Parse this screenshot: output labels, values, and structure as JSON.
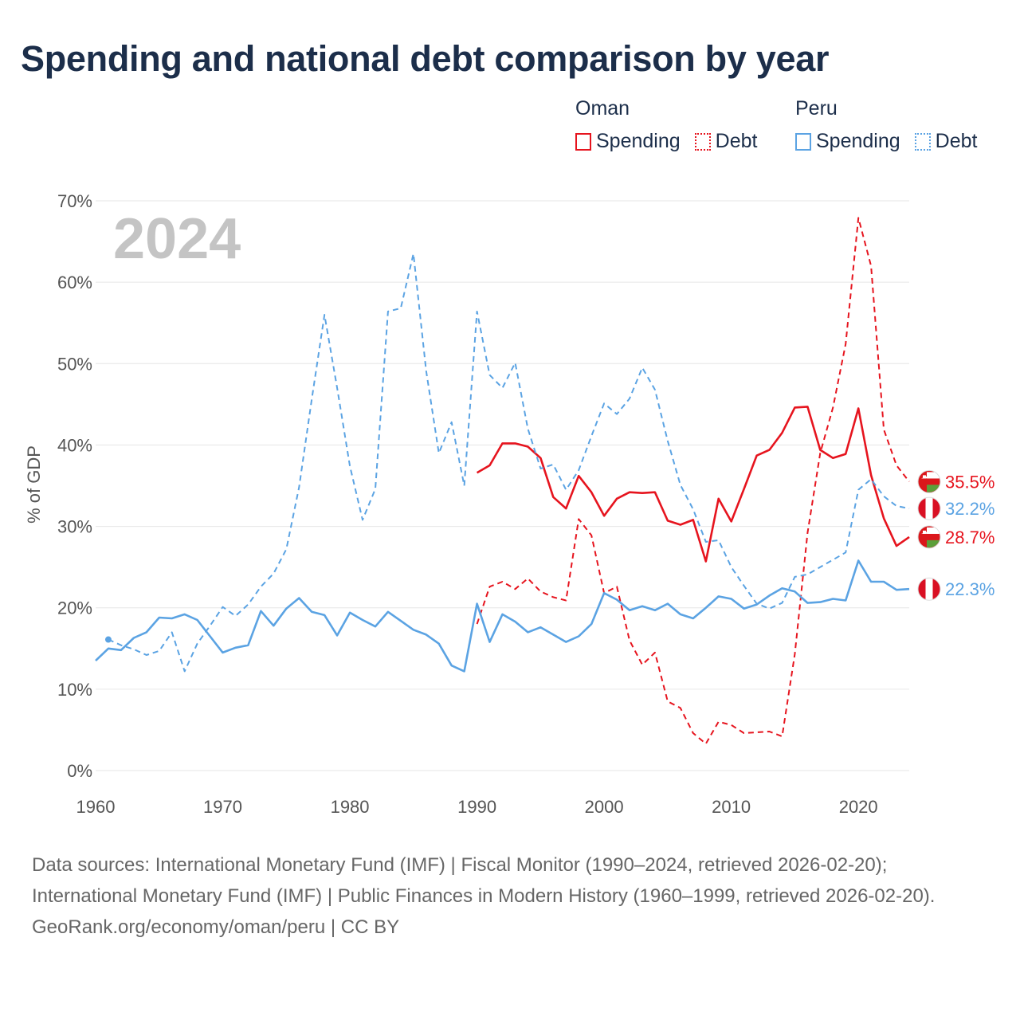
{
  "title": "Spending and national debt comparison by year",
  "legend": {
    "groups": [
      {
        "country": "Oman",
        "color": "#e6141e",
        "spending_label": "Spending",
        "debt_label": "Debt"
      },
      {
        "country": "Peru",
        "color": "#5ba3e3",
        "spending_label": "Spending",
        "debt_label": "Debt"
      }
    ]
  },
  "year_label": "2024",
  "end_labels": [
    {
      "text": "35.5%",
      "country": "Oman",
      "series": "Debt",
      "value": 35.5
    },
    {
      "text": "32.2%",
      "country": "Peru",
      "series": "Debt",
      "value": 32.2
    },
    {
      "text": "28.7%",
      "country": "Oman",
      "series": "Spending",
      "value": 28.7
    },
    {
      "text": "22.3%",
      "country": "Peru",
      "series": "Spending",
      "value": 22.3
    }
  ],
  "chart_data": {
    "type": "line",
    "title": "Spending and national debt comparison by year",
    "xlabel": "",
    "ylabel": "% of GDP",
    "xlim": [
      1960,
      2024
    ],
    "ylim": [
      0,
      70
    ],
    "xticks": [
      "1960",
      "1970",
      "1980",
      "1990",
      "2000",
      "2010",
      "2020"
    ],
    "yticks": [
      "0%",
      "10%",
      "20%",
      "30%",
      "40%",
      "50%",
      "60%",
      "70%"
    ],
    "series": [
      {
        "name": "Oman Spending",
        "country": "Oman",
        "style": "solid",
        "color": "#e6141e",
        "x": [
          1990,
          1991,
          1992,
          1993,
          1994,
          1995,
          1996,
          1997,
          1998,
          1999,
          2000,
          2001,
          2002,
          2003,
          2004,
          2005,
          2006,
          2007,
          2008,
          2009,
          2010,
          2011,
          2012,
          2013,
          2014,
          2015,
          2016,
          2017,
          2018,
          2019,
          2020,
          2021,
          2022,
          2023,
          2024
        ],
        "values": [
          36.6,
          37.5,
          40.2,
          40.2,
          39.8,
          38.4,
          33.6,
          32.2,
          36.2,
          34.2,
          31.3,
          33.4,
          34.2,
          34.1,
          34.2,
          30.7,
          30.2,
          30.8,
          25.7,
          33.4,
          30.6,
          34.6,
          38.7,
          39.4,
          41.5,
          44.6,
          44.7,
          39.4,
          38.4,
          38.9,
          44.5,
          36.3,
          31.0,
          27.6,
          28.7
        ]
      },
      {
        "name": "Oman Debt",
        "country": "Oman",
        "style": "dashed",
        "color": "#e6141e",
        "x": [
          1990,
          1991,
          1992,
          1993,
          1994,
          1995,
          1996,
          1997,
          1998,
          1999,
          2000,
          2001,
          2002,
          2003,
          2004,
          2005,
          2006,
          2007,
          2008,
          2009,
          2010,
          2011,
          2012,
          2013,
          2014,
          2015,
          2016,
          2017,
          2018,
          2019,
          2020,
          2021,
          2022,
          2023,
          2024
        ],
        "values": [
          18.0,
          22.6,
          23.2,
          22.3,
          23.6,
          22.0,
          21.3,
          20.9,
          30.9,
          28.9,
          21.8,
          22.6,
          16.0,
          13.0,
          14.5,
          8.5,
          7.7,
          4.6,
          3.3,
          6.0,
          5.6,
          4.6,
          4.7,
          4.8,
          4.2,
          14.3,
          29.2,
          39.0,
          44.6,
          52.4,
          67.9,
          62.0,
          41.9,
          37.5,
          35.5
        ]
      },
      {
        "name": "Peru Spending",
        "country": "Peru",
        "style": "solid",
        "color": "#5ba3e3",
        "x": [
          1960,
          1961,
          1962,
          1963,
          1964,
          1965,
          1966,
          1967,
          1968,
          1969,
          1970,
          1971,
          1972,
          1973,
          1974,
          1975,
          1976,
          1977,
          1978,
          1979,
          1980,
          1981,
          1982,
          1983,
          1984,
          1985,
          1986,
          1987,
          1988,
          1989,
          1990,
          1991,
          1992,
          1993,
          1994,
          1995,
          1996,
          1997,
          1998,
          1999,
          2000,
          2001,
          2002,
          2003,
          2004,
          2005,
          2006,
          2007,
          2008,
          2009,
          2010,
          2011,
          2012,
          2013,
          2014,
          2015,
          2016,
          2017,
          2018,
          2019,
          2020,
          2021,
          2022,
          2023,
          2024
        ],
        "values": [
          13.5,
          15.0,
          14.8,
          16.3,
          17.0,
          18.8,
          18.7,
          19.2,
          18.5,
          16.5,
          14.5,
          15.1,
          15.4,
          19.6,
          17.8,
          19.9,
          21.2,
          19.5,
          19.1,
          16.6,
          19.4,
          18.5,
          17.7,
          19.5,
          18.4,
          17.3,
          16.7,
          15.6,
          12.9,
          12.2,
          20.5,
          15.8,
          19.2,
          18.3,
          17.0,
          17.6,
          16.7,
          15.8,
          16.5,
          18.0,
          21.8,
          21.0,
          19.7,
          20.2,
          19.7,
          20.5,
          19.2,
          18.7,
          20.0,
          21.4,
          21.1,
          19.9,
          20.4,
          21.5,
          22.4,
          22.0,
          20.6,
          20.7,
          21.1,
          20.9,
          25.8,
          23.2,
          23.2,
          22.2,
          22.3
        ]
      },
      {
        "name": "Peru Debt",
        "country": "Peru",
        "style": "dashed",
        "color": "#5ba3e3",
        "x": [
          1961,
          1962,
          1963,
          1964,
          1965,
          1966,
          1967,
          1968,
          1969,
          1970,
          1971,
          1972,
          1973,
          1974,
          1975,
          1976,
          1977,
          1978,
          1979,
          1980,
          1981,
          1982,
          1983,
          1984,
          1985,
          1986,
          1987,
          1988,
          1989,
          1990,
          1991,
          1992,
          1993,
          1994,
          1995,
          1996,
          1997,
          1998,
          1999,
          2000,
          2001,
          2002,
          2003,
          2004,
          2005,
          2006,
          2007,
          2008,
          2009,
          2010,
          2011,
          2012,
          2013,
          2014,
          2015,
          2016,
          2017,
          2018,
          2019,
          2020,
          2021,
          2022,
          2023,
          2024
        ],
        "values": [
          16.1,
          15.4,
          14.9,
          14.2,
          14.7,
          17.0,
          12.2,
          15.6,
          17.8,
          20.1,
          19.0,
          20.4,
          22.6,
          24.2,
          27.2,
          34.8,
          45.6,
          56.0,
          47.0,
          37.4,
          30.8,
          34.6,
          56.4,
          56.8,
          63.5,
          49.1,
          39.0,
          42.8,
          35.0,
          56.4,
          48.6,
          47.0,
          50.1,
          42.0,
          37.1,
          37.6,
          34.5,
          36.9,
          41.1,
          45.1,
          43.8,
          45.7,
          49.5,
          46.8,
          40.5,
          35.1,
          32.1,
          28.1,
          28.3,
          25.0,
          22.7,
          20.5,
          19.9,
          20.6,
          23.8,
          24.1,
          25.0,
          25.9,
          26.8,
          34.5,
          35.8,
          33.7,
          32.5,
          32.2
        ]
      }
    ]
  },
  "footer": {
    "sources": "Data sources: International Monetary Fund (IMF) | Fiscal Monitor (1990–2024, retrieved 2026-02-20); International Monetary Fund (IMF) | Public Finances in Modern History (1960–1999, retrieved 2026-02-20).",
    "credit": "GeoRank.org/economy/oman/peru | CC BY"
  }
}
